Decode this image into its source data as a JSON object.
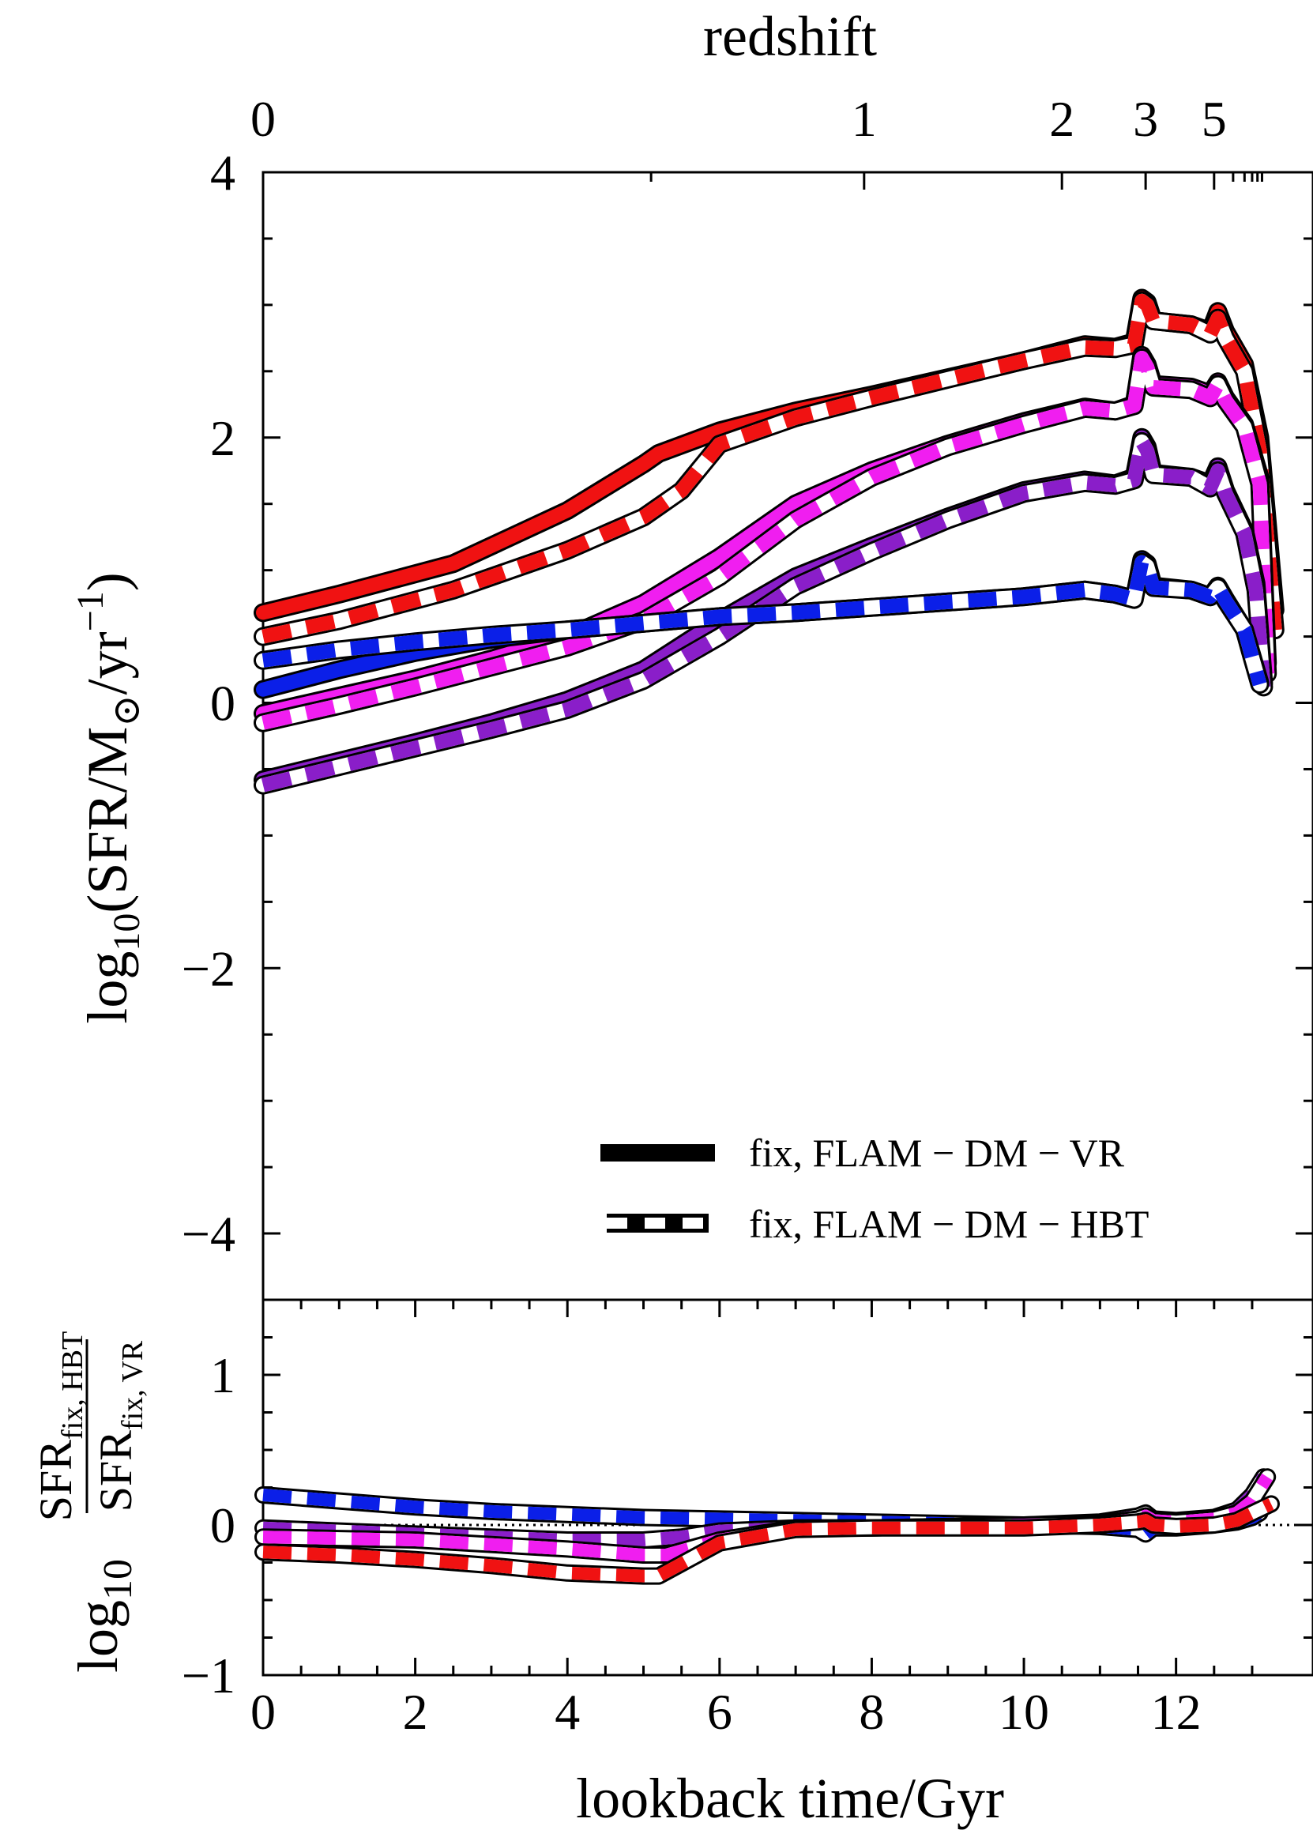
{
  "colors": {
    "blue": "#0b1fe8",
    "violet": "#8a1ec9",
    "magenta": "#f01ef0",
    "red": "#f01212",
    "outline": "#000000",
    "dash_fill": "#ffffff"
  },
  "chart_data": [
    {
      "type": "line",
      "panel": "top",
      "xlabel": "",
      "ylabel_prefix": "log",
      "ylabel_sub": "10",
      "ylabel_main": "(SFR/M",
      "ylabel_sun": "⊙",
      "ylabel_mid": "/yr",
      "ylabel_sup": "−1",
      "ylabel_end": ")",
      "xlim": [
        0,
        13.8
      ],
      "ylim": [
        -4.5,
        4
      ],
      "top_axis_title": "redshift",
      "top_axis_ticks": [
        {
          "label": "0",
          "z": 0,
          "t": 0
        },
        {
          "label": "1",
          "z": 1,
          "t": 7.9
        },
        {
          "label": "2",
          "z": 2,
          "t": 10.5
        },
        {
          "label": "3",
          "z": 3,
          "t": 11.6
        },
        {
          "label": "5",
          "z": 5,
          "t": 12.5
        }
      ],
      "y_ticks": [
        4,
        2,
        0,
        -2,
        -4
      ],
      "y_tick_labels": [
        "4",
        "2",
        "0",
        "−2",
        "−4"
      ],
      "legend": [
        {
          "label": "fix,  FLAM − DM − VR",
          "style": "solid"
        },
        {
          "label": "fix,  FLAM − DM − HBT",
          "style": "dashed"
        }
      ],
      "legend_position": "lower-right",
      "series": [
        {
          "name": "red-VR",
          "color": "red",
          "style": "solid",
          "x": [
            0,
            1,
            2.5,
            4,
            5,
            5.2,
            6,
            7,
            8,
            9,
            10,
            10.8,
            11.2,
            11.45,
            11.55,
            11.62,
            11.7,
            12.2,
            12.45,
            12.55,
            12.65,
            12.9,
            13.1,
            13.3
          ],
          "y": [
            0.68,
            0.82,
            1.05,
            1.45,
            1.8,
            1.88,
            2.05,
            2.2,
            2.32,
            2.45,
            2.58,
            2.7,
            2.68,
            2.72,
            3.05,
            3.02,
            2.88,
            2.85,
            2.8,
            2.95,
            2.8,
            2.55,
            2.0,
            0.7
          ]
        },
        {
          "name": "red-HBT",
          "color": "red",
          "style": "dashed",
          "x": [
            0,
            1,
            2.5,
            4,
            5,
            5.5,
            6,
            7,
            8,
            9,
            10,
            10.8,
            11.2,
            11.45,
            11.55,
            11.62,
            11.7,
            12.2,
            12.45,
            12.55,
            12.65,
            12.9,
            13.1,
            13.3
          ],
          "y": [
            0.5,
            0.62,
            0.85,
            1.15,
            1.4,
            1.6,
            1.95,
            2.15,
            2.3,
            2.44,
            2.58,
            2.68,
            2.67,
            2.7,
            3.03,
            3.0,
            2.88,
            2.85,
            2.78,
            2.9,
            2.75,
            2.5,
            1.9,
            0.55
          ]
        },
        {
          "name": "magenta-VR",
          "color": "magenta",
          "style": "solid",
          "x": [
            0,
            1,
            2,
            3,
            4,
            5,
            6,
            7,
            8,
            9,
            10,
            10.8,
            11.2,
            11.45,
            11.55,
            11.62,
            11.7,
            12.2,
            12.45,
            12.55,
            12.65,
            12.9,
            13.1,
            13.2
          ],
          "y": [
            -0.08,
            0.05,
            0.18,
            0.33,
            0.5,
            0.75,
            1.1,
            1.5,
            1.75,
            1.95,
            2.12,
            2.23,
            2.2,
            2.25,
            2.62,
            2.55,
            2.4,
            2.38,
            2.33,
            2.42,
            2.3,
            2.1,
            1.7,
            0.3
          ]
        },
        {
          "name": "magenta-HBT",
          "color": "magenta",
          "style": "dashed",
          "x": [
            0,
            1,
            2,
            3,
            4,
            5,
            6,
            7,
            8,
            9,
            10,
            10.8,
            11.2,
            11.45,
            11.55,
            11.62,
            11.7,
            12.2,
            12.45,
            12.55,
            12.65,
            12.9,
            13.1,
            13.2
          ],
          "y": [
            -0.15,
            -0.02,
            0.12,
            0.27,
            0.42,
            0.62,
            0.95,
            1.38,
            1.7,
            1.93,
            2.1,
            2.22,
            2.2,
            2.24,
            2.6,
            2.53,
            2.38,
            2.36,
            2.3,
            2.4,
            2.28,
            2.08,
            1.65,
            0.22
          ]
        },
        {
          "name": "violet-VR",
          "color": "violet",
          "style": "solid",
          "x": [
            0,
            1,
            2,
            3,
            4,
            5,
            6,
            7,
            8,
            9,
            10,
            10.8,
            11.2,
            11.45,
            11.55,
            11.62,
            11.7,
            12.2,
            12.45,
            12.55,
            12.65,
            12.9,
            13.05,
            13.15
          ],
          "y": [
            -0.58,
            -0.44,
            -0.3,
            -0.15,
            0.02,
            0.25,
            0.62,
            0.95,
            1.18,
            1.4,
            1.6,
            1.68,
            1.65,
            1.7,
            2.0,
            1.93,
            1.73,
            1.7,
            1.65,
            1.78,
            1.6,
            1.3,
            0.9,
            0.15
          ]
        },
        {
          "name": "violet-HBT",
          "color": "violet",
          "style": "dashed",
          "x": [
            0,
            1,
            2,
            3,
            4,
            5,
            6,
            7,
            8,
            9,
            10,
            10.8,
            11.2,
            11.45,
            11.55,
            11.62,
            11.7,
            12.2,
            12.45,
            12.55,
            12.65,
            12.9,
            13.05,
            13.15
          ],
          "y": [
            -0.62,
            -0.48,
            -0.34,
            -0.2,
            -0.05,
            0.17,
            0.5,
            0.88,
            1.14,
            1.38,
            1.58,
            1.66,
            1.64,
            1.68,
            1.97,
            1.9,
            1.72,
            1.7,
            1.62,
            1.75,
            1.58,
            1.28,
            0.85,
            0.12
          ]
        },
        {
          "name": "blue-VR",
          "color": "blue",
          "style": "solid",
          "x": [
            0,
            1,
            2,
            3,
            4,
            5,
            6,
            7,
            8,
            9,
            10,
            10.8,
            11.2,
            11.45,
            11.55,
            11.62,
            11.7,
            12.2,
            12.45,
            12.55,
            12.65,
            12.9,
            13.0,
            13.1
          ],
          "y": [
            0.1,
            0.25,
            0.38,
            0.48,
            0.55,
            0.6,
            0.65,
            0.68,
            0.72,
            0.76,
            0.8,
            0.85,
            0.82,
            0.78,
            1.08,
            1.05,
            0.88,
            0.85,
            0.8,
            0.88,
            0.78,
            0.55,
            0.35,
            0.15
          ]
        },
        {
          "name": "blue-HBT",
          "color": "blue",
          "style": "dashed",
          "x": [
            0,
            1,
            2,
            3,
            4,
            5,
            6,
            7,
            8,
            9,
            10,
            10.8,
            11.2,
            11.45,
            11.55,
            11.62,
            11.7,
            12.2,
            12.45,
            12.55,
            12.65,
            12.9,
            13.0,
            13.1
          ],
          "y": [
            0.32,
            0.4,
            0.46,
            0.51,
            0.55,
            0.6,
            0.65,
            0.68,
            0.72,
            0.76,
            0.8,
            0.85,
            0.82,
            0.78,
            1.06,
            1.03,
            0.87,
            0.85,
            0.8,
            0.87,
            0.77,
            0.55,
            0.34,
            0.14
          ]
        }
      ]
    },
    {
      "type": "line",
      "panel": "bottom",
      "xlabel": "lookback time/Gyr",
      "ylabel_prefix": "log",
      "ylabel_sub": "10",
      "ylabel_num": "SFR",
      "ylabel_num_sub": "fix, HBT",
      "ylabel_den": "SFR",
      "ylabel_den_sub": "fix, VR",
      "xlim": [
        0,
        13.8
      ],
      "ylim": [
        -1,
        1.5
      ],
      "x_ticks": [
        0,
        2,
        4,
        6,
        8,
        10,
        12
      ],
      "x_tick_labels": [
        "0",
        "2",
        "4",
        "6",
        "8",
        "10",
        "12"
      ],
      "y_ticks": [
        1,
        0,
        -1
      ],
      "y_tick_labels": [
        "1",
        "0",
        "−1"
      ],
      "reference_line": 0,
      "series": [
        {
          "name": "blue-ratio",
          "color": "blue",
          "style": "dashed",
          "x": [
            0,
            1,
            2,
            3,
            4,
            5,
            6,
            7,
            8,
            9,
            10,
            11,
            11.5,
            11.6,
            11.7,
            12,
            12.5,
            12.8,
            13.0,
            13.1
          ],
          "y": [
            0.2,
            0.16,
            0.12,
            0.09,
            0.07,
            0.05,
            0.04,
            0.03,
            0.02,
            0.01,
            0.0,
            -0.01,
            -0.03,
            -0.06,
            -0.02,
            -0.02,
            0.0,
            0.02,
            0.05,
            0.08
          ]
        },
        {
          "name": "violet-ratio",
          "color": "violet",
          "style": "dashed",
          "x": [
            0,
            1,
            2,
            3,
            4,
            5,
            5.5,
            6,
            7,
            8,
            9,
            10,
            11,
            11.5,
            11.6,
            11.7,
            12,
            12.5,
            12.8,
            13.0,
            13.15
          ],
          "y": [
            -0.02,
            -0.04,
            -0.06,
            -0.08,
            -0.1,
            -0.1,
            -0.08,
            -0.04,
            -0.02,
            -0.02,
            -0.01,
            0.0,
            0.02,
            0.06,
            0.08,
            0.04,
            0.03,
            0.05,
            0.1,
            0.2,
            0.32
          ]
        },
        {
          "name": "magenta-ratio",
          "color": "magenta",
          "style": "dashed",
          "x": [
            0,
            1,
            2,
            3,
            4,
            5,
            5.3,
            6,
            7,
            8,
            9,
            10,
            11,
            11.5,
            11.6,
            11.7,
            12,
            12.5,
            12.8,
            13.0,
            13.2
          ],
          "y": [
            -0.08,
            -0.09,
            -0.1,
            -0.13,
            -0.16,
            -0.2,
            -0.2,
            -0.1,
            -0.02,
            -0.02,
            -0.01,
            0.0,
            0.01,
            0.04,
            0.06,
            0.03,
            0.02,
            0.04,
            0.08,
            0.16,
            0.32
          ]
        },
        {
          "name": "red-ratio",
          "color": "red",
          "style": "dashed",
          "x": [
            0,
            1,
            2,
            3,
            4,
            5,
            5.2,
            6,
            7,
            8,
            9,
            10,
            11,
            11.5,
            11.6,
            11.7,
            12,
            12.5,
            12.8,
            13.0,
            13.25
          ],
          "y": [
            -0.18,
            -0.2,
            -0.23,
            -0.27,
            -0.32,
            -0.34,
            -0.34,
            -0.12,
            -0.03,
            -0.02,
            -0.02,
            -0.02,
            0.0,
            0.02,
            0.03,
            0.0,
            -0.01,
            0.0,
            0.03,
            0.08,
            0.14
          ]
        }
      ]
    }
  ]
}
